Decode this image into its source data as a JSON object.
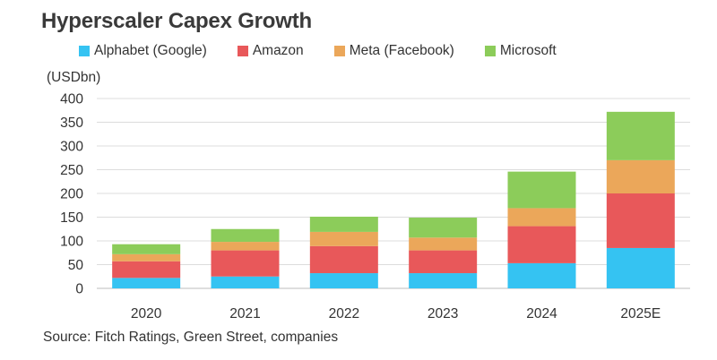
{
  "chart_data": {
    "type": "bar",
    "stacked": true,
    "title": "Hyperscaler Capex Growth",
    "ylabel": "(USDbn)",
    "xlabel": "",
    "ylim": [
      0,
      400
    ],
    "yticks": [
      0,
      50,
      100,
      150,
      200,
      250,
      300,
      350,
      400
    ],
    "grid": true,
    "legend_position": "top",
    "categories": [
      "2020",
      "2021",
      "2022",
      "2023",
      "2024",
      "2025E"
    ],
    "series": [
      {
        "name": "Alphabet (Google)",
        "color": "#35c3f2",
        "values": [
          22,
          25,
          32,
          32,
          53,
          85
        ]
      },
      {
        "name": "Amazon",
        "color": "#e8585a",
        "values": [
          35,
          55,
          57,
          48,
          78,
          115
        ]
      },
      {
        "name": "Meta (Facebook)",
        "color": "#eba75a",
        "values": [
          15,
          18,
          30,
          27,
          38,
          70
        ]
      },
      {
        "name": "Microsoft",
        "color": "#8ccc5a",
        "values": [
          21,
          27,
          32,
          42,
          77,
          102
        ]
      }
    ],
    "source": "Source: Fitch Ratings, Green Street, companies"
  }
}
